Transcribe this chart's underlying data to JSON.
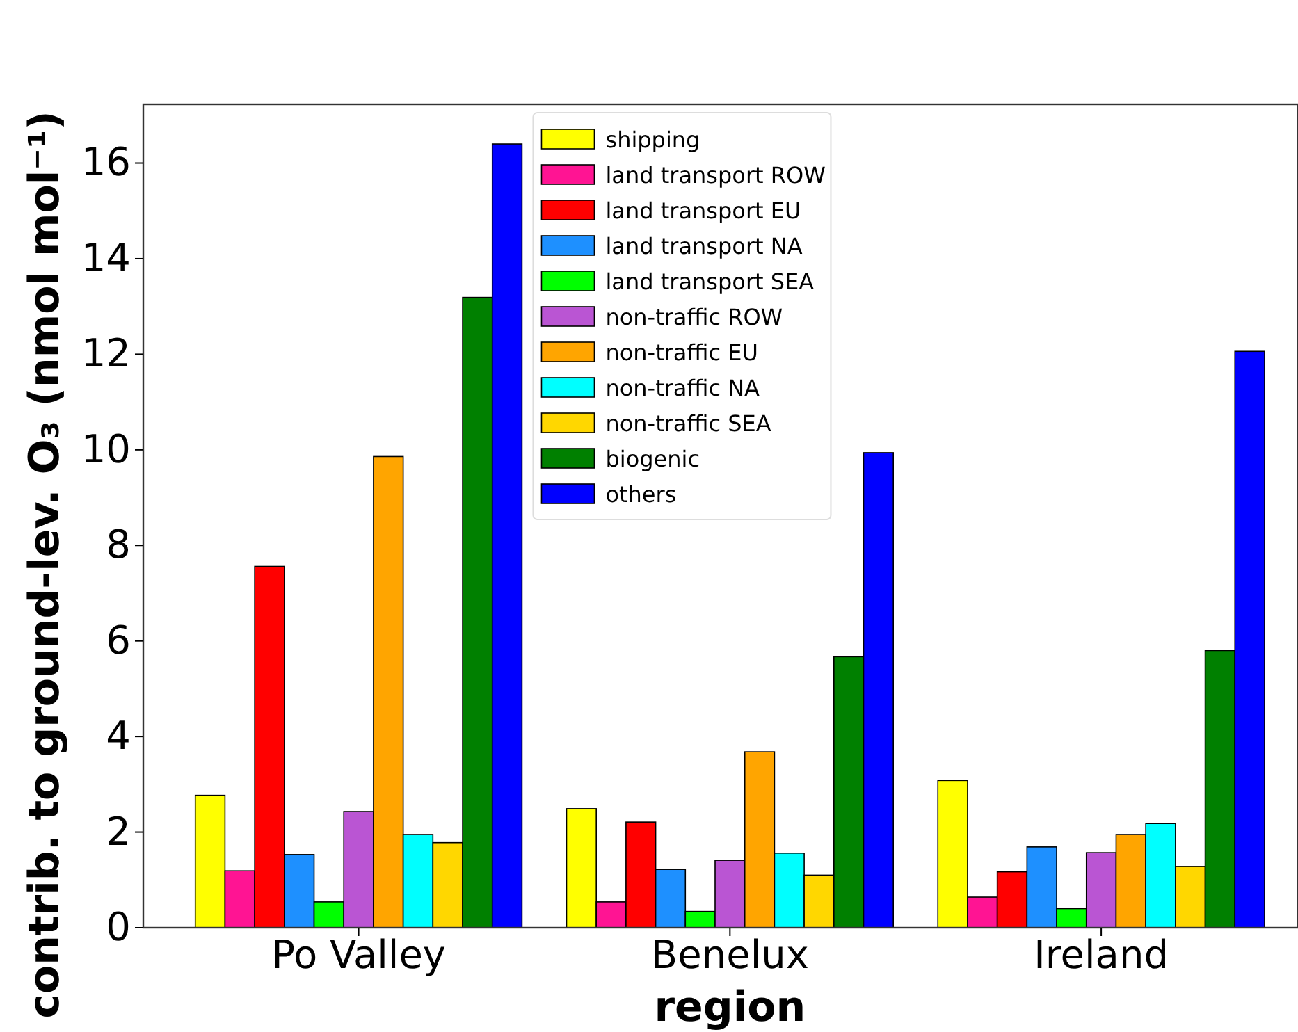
{
  "chart_data": {
    "type": "bar",
    "xlabel": "region",
    "ylabel": "contrib. to ground-lev. O₃ (nmol mol⁻¹)",
    "categories": [
      "Po Valley",
      "Benelux",
      "Ireland"
    ],
    "series": [
      {
        "name": "shipping",
        "color": "#ffff00",
        "values": [
          2.77,
          2.49,
          3.08
        ]
      },
      {
        "name": "land transport ROW",
        "color": "#ff1493",
        "values": [
          1.19,
          0.54,
          0.64
        ]
      },
      {
        "name": "land transport EU",
        "color": "#ff0000",
        "values": [
          7.56,
          2.21,
          1.17
        ]
      },
      {
        "name": "land transport NA",
        "color": "#1e90ff",
        "values": [
          1.53,
          1.22,
          1.69
        ]
      },
      {
        "name": "land transport SEA",
        "color": "#00ff00",
        "values": [
          0.54,
          0.34,
          0.4
        ]
      },
      {
        "name": "non-traffic ROW",
        "color": "#ba55d3",
        "values": [
          2.43,
          1.41,
          1.57
        ]
      },
      {
        "name": "non-traffic EU",
        "color": "#ffa500",
        "values": [
          9.86,
          3.68,
          1.95
        ]
      },
      {
        "name": "non-traffic NA",
        "color": "#00ffff",
        "values": [
          1.95,
          1.56,
          2.18
        ]
      },
      {
        "name": "non-traffic SEA",
        "color": "#ffd700",
        "values": [
          1.78,
          1.1,
          1.28
        ]
      },
      {
        "name": "biogenic",
        "color": "#008000",
        "values": [
          13.19,
          5.67,
          5.8
        ]
      },
      {
        "name": "others",
        "color": "#0000ff",
        "values": [
          16.4,
          9.94,
          12.06
        ]
      }
    ],
    "ylim": [
      0,
      17.23
    ],
    "yticks": [
      0,
      2,
      4,
      6,
      8,
      10,
      12,
      14,
      16
    ],
    "grid": false,
    "legend": "top"
  }
}
